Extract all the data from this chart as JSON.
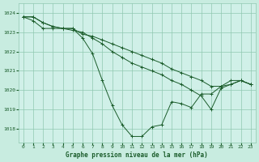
{
  "background_color": "#c8ece0",
  "plot_bg_color": "#d0f0e8",
  "grid_color": "#90c8b0",
  "line_color": "#1a5c2a",
  "title": "Graphe pression niveau de la mer (hPa)",
  "xlim": [
    -0.5,
    23.5
  ],
  "ylim": [
    1017.3,
    1024.5
  ],
  "yticks": [
    1018,
    1019,
    1020,
    1021,
    1022,
    1023,
    1024
  ],
  "xticks": [
    0,
    1,
    2,
    3,
    4,
    5,
    6,
    7,
    8,
    9,
    10,
    11,
    12,
    13,
    14,
    15,
    16,
    17,
    18,
    19,
    20,
    21,
    22,
    23
  ],
  "series": [
    [
      1023.8,
      1023.8,
      1023.5,
      1023.3,
      1023.2,
      1023.2,
      1022.9,
      1022.8,
      1022.6,
      1022.4,
      1022.2,
      1022.0,
      1021.8,
      1021.6,
      1021.4,
      1021.1,
      1020.9,
      1020.7,
      1020.5,
      1020.2,
      1020.2,
      1020.5,
      1020.5,
      1020.3
    ],
    [
      1023.8,
      1023.8,
      1023.5,
      1023.3,
      1023.2,
      1023.2,
      1022.7,
      1021.9,
      1020.5,
      1019.2,
      1018.2,
      1017.6,
      1017.6,
      1018.1,
      1018.2,
      1019.4,
      1019.3,
      1019.1,
      1019.8,
      1019.8,
      1020.2,
      1020.3,
      1020.5,
      1020.3
    ],
    [
      1023.8,
      1023.6,
      1023.2,
      1023.2,
      1023.2,
      1023.1,
      1023.0,
      1022.7,
      1022.4,
      1022.0,
      1021.7,
      1021.4,
      1021.2,
      1021.0,
      1020.8,
      1020.5,
      1020.3,
      1020.0,
      1019.7,
      1019.0,
      1020.1,
      1020.3,
      1020.5,
      1020.3
    ]
  ]
}
